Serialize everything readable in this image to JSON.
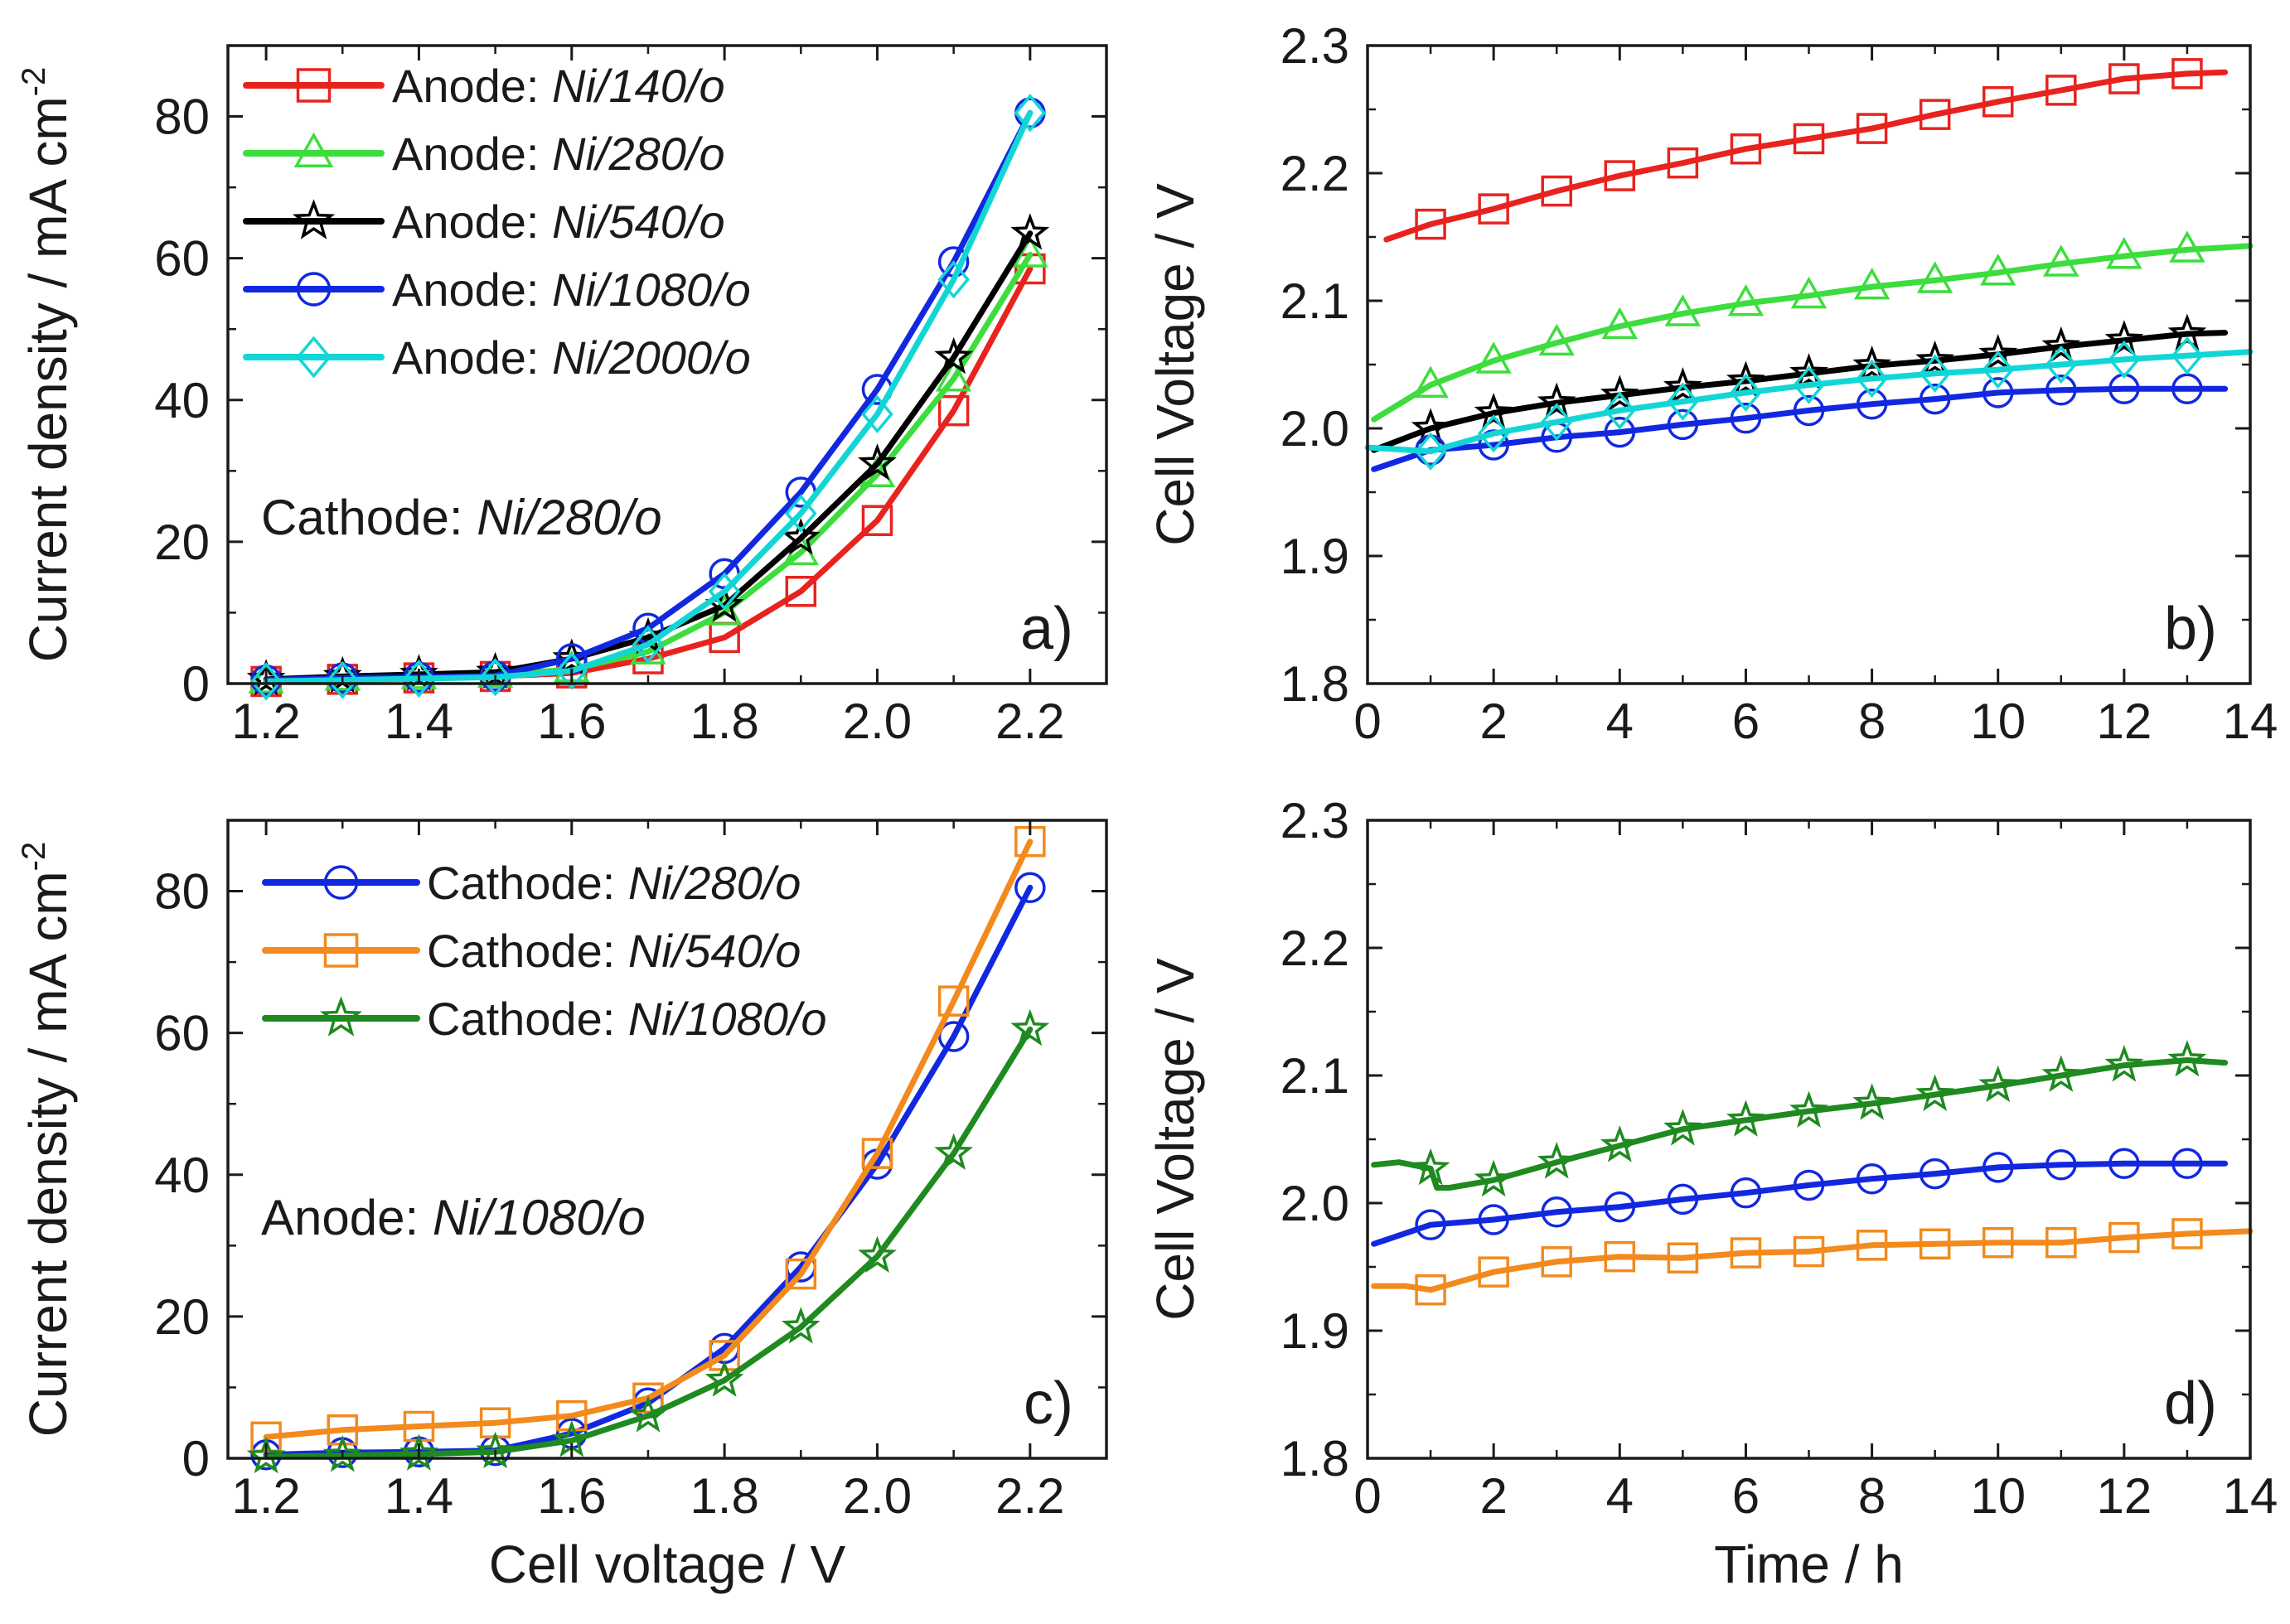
{
  "chart_data": [
    {
      "type": "line",
      "panel_label": "a)",
      "annotation": {
        "prefix": "Cathode: ",
        "italic": "Ni/280/o"
      },
      "xlabel": "",
      "ylabel": "Current density / mA cm",
      "ylabel_superscript": "-2",
      "xlim": [
        1.15,
        2.3
      ],
      "ylim": [
        0,
        90
      ],
      "xticks": [
        1.2,
        1.4,
        1.6,
        1.8,
        2.0,
        2.2
      ],
      "xtick_labels": [
        "1.2",
        "1.4",
        "1.6",
        "1.8",
        "2.0",
        "2.2"
      ],
      "yticks": [
        0,
        20,
        40,
        60,
        80
      ],
      "ytick_labels": [
        "0",
        "20",
        "40",
        "60",
        "80"
      ],
      "legend_position": "top-left",
      "x": [
        1.2,
        1.3,
        1.4,
        1.5,
        1.6,
        1.7,
        1.8,
        1.9,
        2.0,
        2.1,
        2.2
      ],
      "series": [
        {
          "name": "Anode: ",
          "name_italic": "Ni/140/o",
          "color": "#e8231e",
          "marker": "square",
          "values": [
            0.3,
            0.6,
            0.8,
            1.0,
            1.5,
            3.5,
            6.5,
            13,
            23,
            38.5,
            58.5
          ]
        },
        {
          "name": "Anode: ",
          "name_italic": "Ni/280/o",
          "color": "#3ddd3d",
          "marker": "triangle",
          "values": [
            0.4,
            0.8,
            1.0,
            1.2,
            2.0,
            4.5,
            10,
            18.5,
            29.5,
            43,
            60.5
          ]
        },
        {
          "name": "Anode: ",
          "name_italic": "Ni/540/o",
          "color": "#000000",
          "marker": "star",
          "values": [
            0.6,
            1.0,
            1.3,
            1.6,
            3.5,
            6.5,
            11,
            20.5,
            31,
            46,
            63.5
          ]
        },
        {
          "name": "Anode: ",
          "name_italic": "Ni/1080/o",
          "color": "#1228e0",
          "marker": "circle",
          "values": [
            0.5,
            0.8,
            0.9,
            1.1,
            3.5,
            7.8,
            15.5,
            27,
            41.5,
            59.5,
            80.5
          ]
        },
        {
          "name": "Anode: ",
          "name_italic": "Ni/2000/o",
          "color": "#12d6d6",
          "marker": "diamond",
          "values": [
            0.3,
            0.5,
            0.7,
            0.9,
            1.8,
            5.5,
            13,
            24,
            38,
            57,
            80.5
          ]
        }
      ]
    },
    {
      "type": "line",
      "panel_label": "b)",
      "xlabel": "",
      "ylabel": "Cell Voltage / V",
      "xlim": [
        0,
        14
      ],
      "ylim": [
        1.8,
        2.3
      ],
      "xticks": [
        0,
        2,
        4,
        6,
        8,
        10,
        12,
        14
      ],
      "xtick_labels": [
        "0",
        "2",
        "4",
        "6",
        "8",
        "10",
        "12",
        "14"
      ],
      "yticks": [
        1.8,
        1.9,
        2.0,
        2.1,
        2.2,
        2.3
      ],
      "ytick_labels": [
        "1.8",
        "1.9",
        "2.0",
        "2.1",
        "2.2",
        "2.3"
      ],
      "series": [
        {
          "name": "Anode: Ni/140/o",
          "color": "#e8231e",
          "marker": "square",
          "x": [
            0.3,
            1,
            2,
            3,
            4,
            5,
            6,
            7,
            8,
            9,
            10,
            11,
            12,
            13,
            13.6
          ],
          "values": [
            2.148,
            2.16,
            2.172,
            2.186,
            2.198,
            2.208,
            2.219,
            2.227,
            2.235,
            2.246,
            2.256,
            2.265,
            2.274,
            2.278,
            2.279
          ]
        },
        {
          "name": "Anode: Ni/280/o",
          "color": "#3ddd3d",
          "marker": "triangle",
          "x": [
            0.1,
            1,
            2,
            3,
            4,
            5,
            6,
            7,
            8,
            9,
            10,
            11,
            12,
            13,
            14
          ],
          "values": [
            2.007,
            2.034,
            2.053,
            2.067,
            2.08,
            2.09,
            2.098,
            2.104,
            2.111,
            2.116,
            2.122,
            2.129,
            2.135,
            2.14,
            2.143
          ]
        },
        {
          "name": "Anode: Ni/540/o",
          "color": "#000000",
          "marker": "star",
          "x": [
            0.1,
            1,
            2,
            3,
            4,
            5,
            6,
            7,
            8,
            9,
            10,
            11,
            12,
            13,
            13.6
          ],
          "values": [
            1.983,
            2.0,
            2.012,
            2.02,
            2.026,
            2.032,
            2.037,
            2.043,
            2.049,
            2.053,
            2.058,
            2.064,
            2.069,
            2.074,
            2.075
          ]
        },
        {
          "name": "Anode: Ni/1080/o",
          "color": "#1228e0",
          "marker": "circle",
          "x": [
            0.1,
            1,
            2,
            3,
            4,
            5,
            6,
            7,
            8,
            9,
            10,
            11,
            12,
            13,
            13.6
          ],
          "values": [
            1.968,
            1.983,
            1.987,
            1.993,
            1.997,
            2.003,
            2.008,
            2.014,
            2.019,
            2.023,
            2.028,
            2.03,
            2.031,
            2.031,
            2.031
          ]
        },
        {
          "name": "Anode: Ni/2000/o",
          "color": "#12d6d6",
          "marker": "diamond",
          "x": [
            0,
            1,
            2,
            3,
            4,
            5,
            6,
            7,
            8,
            9,
            10,
            11,
            12,
            13,
            14
          ],
          "values": [
            1.985,
            1.982,
            1.996,
            2.005,
            2.014,
            2.021,
            2.028,
            2.034,
            2.039,
            2.043,
            2.046,
            2.05,
            2.054,
            2.057,
            2.06
          ]
        }
      ]
    },
    {
      "type": "line",
      "panel_label": "c)",
      "annotation": {
        "prefix": "Anode: ",
        "italic": "Ni/1080/o"
      },
      "xlabel": "Cell voltage / V",
      "ylabel": "Current density / mA cm",
      "ylabel_superscript": "-2",
      "xlim": [
        1.15,
        2.3
      ],
      "ylim": [
        0,
        90
      ],
      "xticks": [
        1.2,
        1.4,
        1.6,
        1.8,
        2.0,
        2.2
      ],
      "xtick_labels": [
        "1.2",
        "1.4",
        "1.6",
        "1.8",
        "2.0",
        "2.2"
      ],
      "yticks": [
        0,
        20,
        40,
        60,
        80
      ],
      "ytick_labels": [
        "0",
        "20",
        "40",
        "60",
        "80"
      ],
      "legend_position": "top-left",
      "x": [
        1.2,
        1.3,
        1.4,
        1.5,
        1.6,
        1.7,
        1.8,
        1.9,
        2.0,
        2.1,
        2.2
      ],
      "series": [
        {
          "name": "Cathode: ",
          "name_italic": "Ni/280/o",
          "color": "#1228e0",
          "marker": "circle",
          "values": [
            0.5,
            0.8,
            0.9,
            1.1,
            3.5,
            7.8,
            15.5,
            27,
            41.5,
            59.5,
            80.5
          ]
        },
        {
          "name": "Cathode: ",
          "name_italic": "Ni/540/o",
          "color": "#f28a1e",
          "marker": "square",
          "values": [
            3.0,
            4.0,
            4.5,
            5.0,
            6.0,
            8.5,
            14.5,
            26,
            43,
            64.5,
            87
          ]
        },
        {
          "name": "Cathode: ",
          "name_italic": "Ni/1080/o",
          "color": "#1f8a1f",
          "marker": "star",
          "values": [
            0.2,
            0.4,
            0.6,
            0.9,
            2.5,
            6.0,
            11,
            18.5,
            28.5,
            43,
            60.5
          ]
        }
      ]
    },
    {
      "type": "line",
      "panel_label": "d)",
      "xlabel": "Time / h",
      "ylabel": "Cell Voltage / V",
      "xlim": [
        0,
        14
      ],
      "ylim": [
        1.8,
        2.3
      ],
      "xticks": [
        0,
        2,
        4,
        6,
        8,
        10,
        12,
        14
      ],
      "xtick_labels": [
        "0",
        "2",
        "4",
        "6",
        "8",
        "10",
        "12",
        "14"
      ],
      "yticks": [
        1.8,
        1.9,
        2.0,
        2.1,
        2.2,
        2.3
      ],
      "ytick_labels": [
        "1.8",
        "1.9",
        "2.0",
        "2.1",
        "2.2",
        "2.3"
      ],
      "series": [
        {
          "name": "Cathode: Ni/280/o",
          "color": "#1228e0",
          "marker": "circle",
          "x": [
            0.1,
            1,
            2,
            3,
            4,
            5,
            6,
            7,
            8,
            9,
            10,
            11,
            12,
            13,
            13.6
          ],
          "values": [
            1.968,
            1.983,
            1.987,
            1.993,
            1.997,
            2.003,
            2.008,
            2.014,
            2.019,
            2.023,
            2.028,
            2.03,
            2.031,
            2.031,
            2.031
          ]
        },
        {
          "name": "Cathode: Ni/540/o",
          "color": "#f28a1e",
          "marker": "square",
          "x": [
            0.1,
            0.6,
            1,
            2,
            3,
            4,
            5,
            6,
            7,
            8,
            9,
            10,
            11,
            12,
            13,
            14
          ],
          "values": [
            1.935,
            1.935,
            1.932,
            1.946,
            1.954,
            1.958,
            1.957,
            1.961,
            1.962,
            1.967,
            1.968,
            1.969,
            1.969,
            1.973,
            1.976,
            1.978
          ]
        },
        {
          "name": "Cathode: Ni/1080/o",
          "color": "#1f8a1f",
          "marker": "star",
          "x": [
            0.1,
            0.5,
            1,
            1.1,
            1.3,
            2,
            3,
            4,
            5,
            6,
            7,
            8,
            9,
            10,
            11,
            12,
            13,
            13.6
          ],
          "values": [
            2.03,
            2.032,
            2.027,
            2.012,
            2.012,
            2.018,
            2.032,
            2.045,
            2.058,
            2.065,
            2.072,
            2.078,
            2.085,
            2.092,
            2.1,
            2.108,
            2.112,
            2.11
          ]
        }
      ]
    }
  ]
}
